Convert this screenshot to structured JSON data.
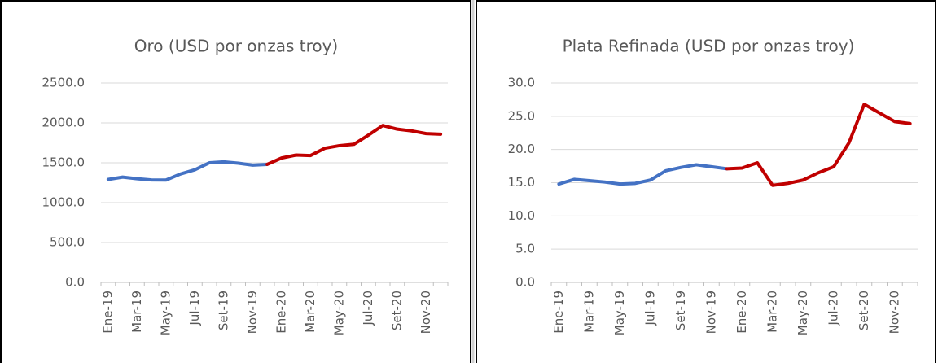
{
  "chart_data": [
    {
      "type": "line",
      "title": "Oro (USD por onzas troy)",
      "categories": [
        "Ene-19",
        null,
        "Mar-19",
        null,
        "May-19",
        null,
        "Jul-19",
        null,
        "Set-19",
        null,
        "Nov-19",
        null,
        "Ene-20",
        null,
        "Mar-20",
        null,
        "May-20",
        null,
        "Jul-20",
        null,
        "Set-20",
        null,
        "Nov-20",
        null
      ],
      "series": [
        {
          "color": "#4472c4",
          "values": [
            1291,
            1320,
            1300,
            1285,
            1283,
            1359,
            1413,
            1500,
            1511,
            1495,
            1471,
            1480,
            null,
            null,
            null,
            null,
            null,
            null,
            null,
            null,
            null,
            null,
            null,
            null
          ]
        },
        {
          "color": "#c00000",
          "values": [
            null,
            null,
            null,
            null,
            null,
            null,
            null,
            null,
            null,
            null,
            null,
            1480,
            1560,
            1597,
            1591,
            1683,
            1715,
            1732,
            1846,
            1968,
            1922,
            1900,
            1866,
            1858
          ]
        }
      ],
      "ylim": [
        0,
        2500
      ],
      "yticks": [
        {
          "value": 0,
          "label": "0.0"
        },
        {
          "value": 500,
          "label": "500.0"
        },
        {
          "value": 1000,
          "label": "1000.0"
        },
        {
          "value": 1500,
          "label": "1500.0"
        },
        {
          "value": 2000,
          "label": "2000.0"
        },
        {
          "value": 2500,
          "label": "2500.0"
        }
      ],
      "grid": true
    },
    {
      "type": "line",
      "title": "Plata Refinada (USD por onzas troy)",
      "categories": [
        "Ene-19",
        null,
        "Mar-19",
        null,
        "May-19",
        null,
        "Jul-19",
        null,
        "Set-19",
        null,
        "Nov-19",
        null,
        "Ene-20",
        null,
        "Mar-20",
        null,
        "May-20",
        null,
        "Jul-20",
        null,
        "Set-20",
        null,
        "Nov-20",
        null
      ],
      "series": [
        {
          "color": "#4472c4",
          "values": [
            14.8,
            15.5,
            15.3,
            15.1,
            14.8,
            14.9,
            15.4,
            16.8,
            17.3,
            17.7,
            17.4,
            17.1,
            null,
            null,
            null,
            null,
            null,
            null,
            null,
            null,
            null,
            null,
            null,
            null
          ]
        },
        {
          "color": "#c00000",
          "values": [
            null,
            null,
            null,
            null,
            null,
            null,
            null,
            null,
            null,
            null,
            null,
            17.1,
            17.2,
            18.0,
            14.6,
            14.9,
            15.4,
            16.5,
            17.4,
            21.0,
            26.8,
            25.5,
            24.2,
            23.9
          ]
        }
      ],
      "ylim": [
        0,
        30
      ],
      "yticks": [
        {
          "value": 0,
          "label": "0.0"
        },
        {
          "value": 5,
          "label": "5.0"
        },
        {
          "value": 10,
          "label": "10.0"
        },
        {
          "value": 15,
          "label": "15.0"
        },
        {
          "value": 20,
          "label": "20.0"
        },
        {
          "value": 25,
          "label": "25.0"
        },
        {
          "value": 30,
          "label": "30.0"
        }
      ],
      "grid": true
    }
  ]
}
